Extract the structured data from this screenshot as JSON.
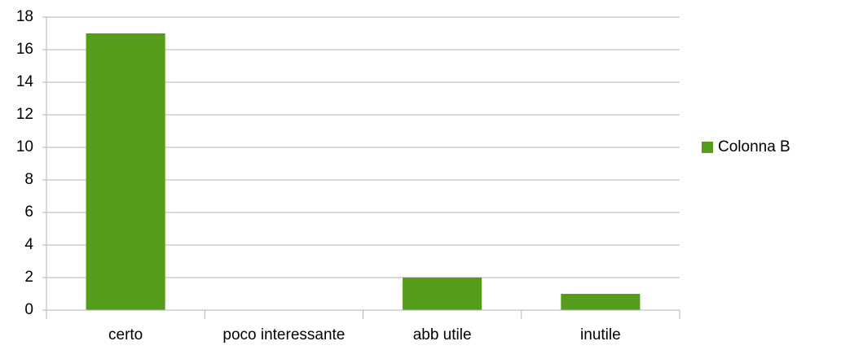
{
  "chart_data": {
    "type": "bar",
    "categories": [
      "certo",
      "poco interessante",
      "abb utile",
      "inutile"
    ],
    "series": [
      {
        "name": "Colonna B",
        "color": "#579d1c",
        "values": [
          17,
          0,
          2,
          1
        ]
      }
    ],
    "ylim": [
      0,
      18
    ],
    "yticks": [
      0,
      2,
      4,
      6,
      8,
      10,
      12,
      14,
      16,
      18
    ],
    "grid": true,
    "legend": "right"
  }
}
